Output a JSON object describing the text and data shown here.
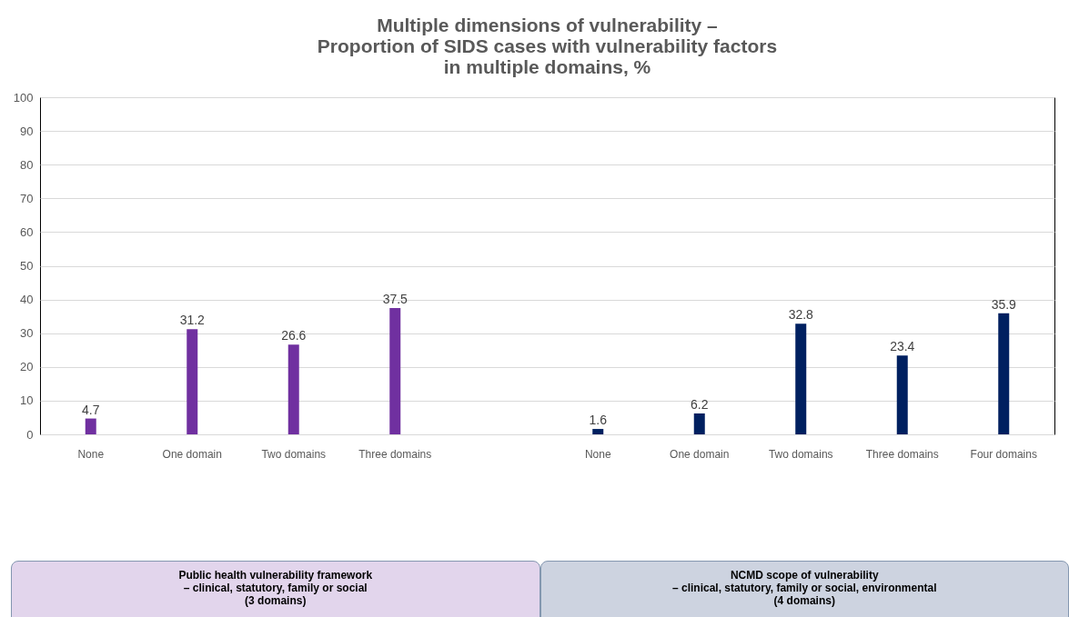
{
  "chart_data": {
    "type": "bar",
    "title": "Multiple dimensions of vulnerability –\nProportion of SIDS cases with vulnerability factors\nin multiple domains, %",
    "categories": [
      "None",
      "One domain",
      "Two domains",
      "Three domains",
      null,
      "None",
      "One domain",
      "Two domains",
      "Three domains",
      "Four domains"
    ],
    "series": [
      {
        "color": "#7030a0",
        "values": [
          4.7,
          31.2,
          26.6,
          37.5,
          null,
          null,
          null,
          null,
          null,
          null
        ]
      },
      {
        "color": "#002060",
        "values": [
          null,
          null,
          null,
          null,
          null,
          1.6,
          6.2,
          32.8,
          23.4,
          35.9
        ]
      }
    ],
    "ylim": [
      0,
      100
    ],
    "yticks": [
      0,
      10,
      20,
      30,
      40,
      50,
      60,
      70,
      80,
      90,
      100
    ],
    "grid": "y",
    "data_labels": true,
    "legend": false,
    "annotations": [
      "Public health vulnerability framework\n– clinical, statutory, family or social\n(3 domains)",
      "NCMD scope of  vulnerability\n– clinical, statutory, family or social, environmental\n(4 domains)"
    ]
  }
}
